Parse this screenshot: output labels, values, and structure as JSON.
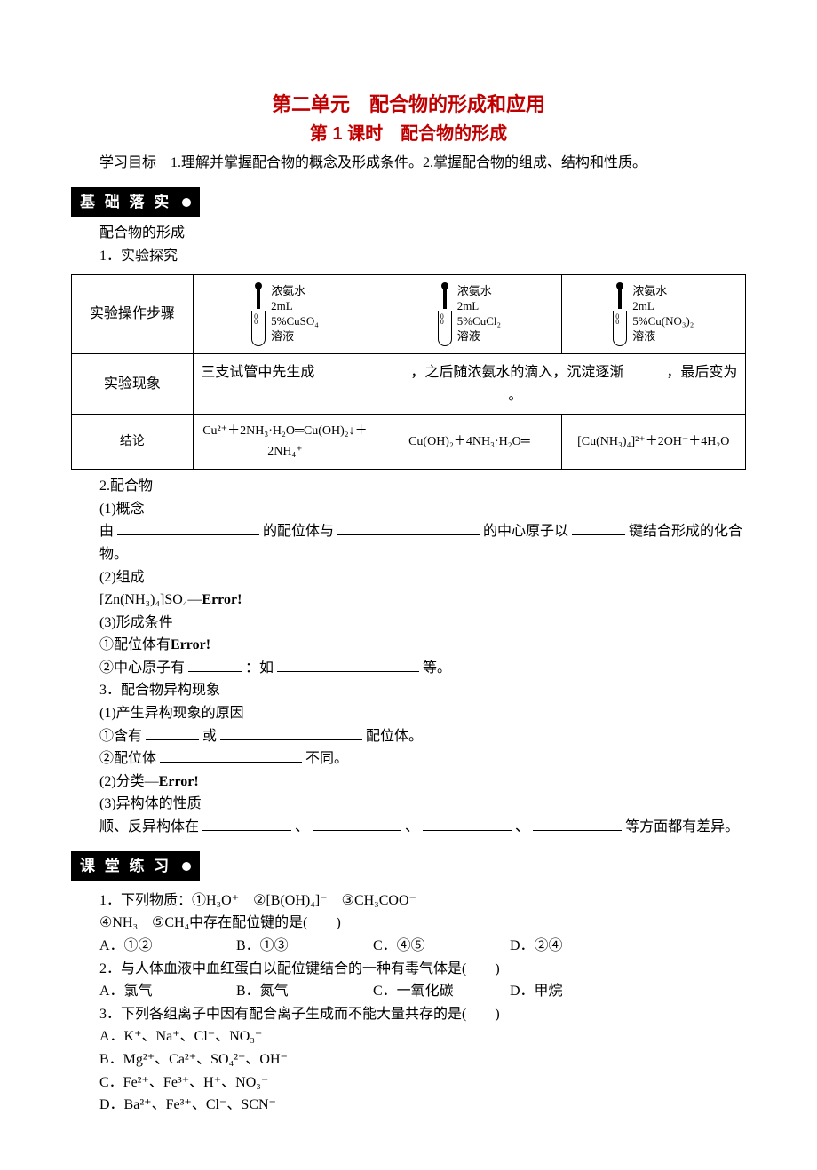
{
  "colors": {
    "title": "#c00000",
    "text": "#000000",
    "badge_bg": "#000000",
    "badge_fg": "#ffffff",
    "bg": "#ffffff"
  },
  "fonts": {
    "title_family": "SimHei",
    "body_family": "SimSun",
    "title_size": 22,
    "subtitle_size": 20,
    "body_size": 16,
    "table_formula_size": 14,
    "tube_label_size": 13
  },
  "title": {
    "main": "第二单元　配合物的形成和应用",
    "sub": "第 1 课时　配合物的形成"
  },
  "objectives": "学习目标　1.理解并掌握配合物的概念及形成条件。2.掌握配合物的组成、结构和性质。",
  "sections": {
    "basics": "基 础 落 实",
    "practice": "课 堂 练 习"
  },
  "basics": {
    "heading": "配合物的形成",
    "item1": "1．实验探究",
    "table": {
      "row1_label": "实验操作步骤",
      "droplabel": "浓氨水",
      "vol": "2mL",
      "sol1": "5%CuSO₄",
      "sol2": "5%CuCl₂",
      "sol3": "5%Cu(NO₃)₂",
      "sol_suffix": "溶液",
      "row2_label": "实验现象",
      "phenom_a": "三支试管中先生成",
      "phenom_b": "，之后随浓氨水的滴入，沉淀逐渐",
      "phenom_c": "，最后变为",
      "phenom_d": "。",
      "row3_label": "结论",
      "concl1": "Cu²⁺＋2NH₃·H₂O═Cu(OH)₂↓＋2NH₄⁺",
      "concl2": "Cu(OH)₂＋4NH₃·H₂O═",
      "concl3": "[Cu(NH₃)₄]²⁺＋2OH⁻＋4H₂O"
    },
    "item2": "2.配合物",
    "c2_1": "(1)概念",
    "c2_line_a": "由",
    "c2_line_b": "的配位体与",
    "c2_line_c": "的中心原子以",
    "c2_line_d": "键结合形成的化合物。",
    "c2_2": "(2)组成",
    "c2_formula": "[Zn(NH₃)₄]SO₄—",
    "error": "Error!",
    "c2_3": "(3)形成条件",
    "c2_3a": "①配位体有",
    "c2_3b_a": "②中心原子有",
    "c2_3b_b": "：如",
    "c2_3b_c": "等。",
    "item3": "3．配合物异构现象",
    "c3_1": "(1)产生异构现象的原因",
    "c3_1a_a": "①含有",
    "c3_1a_b": "或",
    "c3_1a_c": "配位体。",
    "c3_1b_a": "②配位体",
    "c3_1b_b": "不同。",
    "c3_2": "(2)分类—",
    "c3_3": "(3)异构体的性质",
    "c3_3line_a": "顺、反异构体在",
    "c3_3line_sep": "、",
    "c3_3line_end": "等方面都有差异。"
  },
  "practice": {
    "q1": "1．下列物质：①H₃O⁺　②[B(OH)₄]⁻　③CH₃COO⁻",
    "q1b": "④NH₃　⑤CH₄中存在配位键的是(　　)",
    "q1opts": {
      "a": "A．①②",
      "b": "B．①③",
      "c": "C．④⑤",
      "d": "D．②④"
    },
    "q2": "2．与人体血液中血红蛋白以配位键结合的一种有毒气体是(　　)",
    "q2opts": {
      "a": "A．氯气",
      "b": "B．氮气",
      "c": "C．一氧化碳",
      "d": "D．甲烷"
    },
    "q3": "3．下列各组离子中因有配合离子生成而不能大量共存的是(　　)",
    "q3a": "A．K⁺、Na⁺、Cl⁻、NO₃⁻",
    "q3b": "B．Mg²⁺、Ca²⁺、SO₄²⁻、OH⁻",
    "q3c": "C．Fe²⁺、Fe³⁺、H⁺、NO₃⁻",
    "q3d": "D．Ba²⁺、Fe³⁺、Cl⁻、SCN⁻"
  }
}
